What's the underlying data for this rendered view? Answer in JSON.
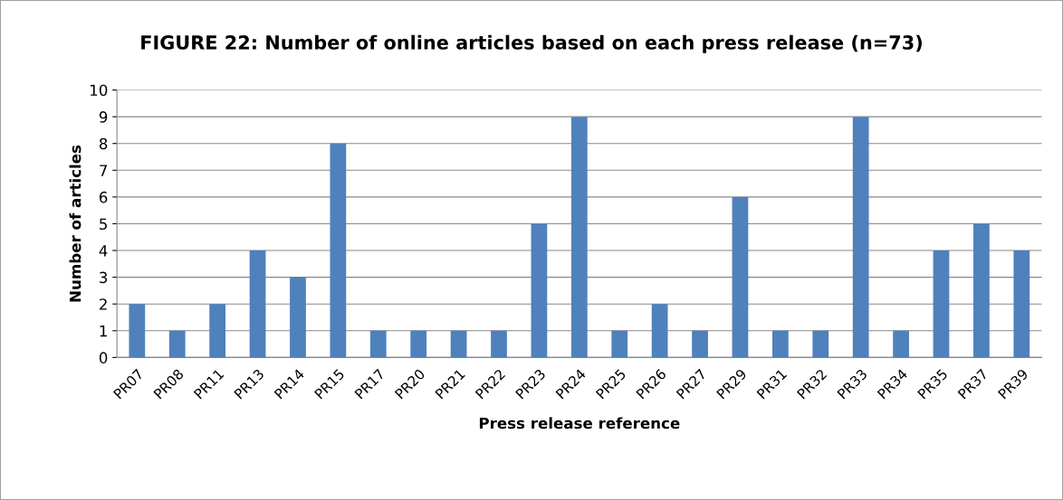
{
  "chart_data": {
    "type": "bar",
    "title": "FIGURE 22: Number of online articles based on each press release (n=73)",
    "xlabel": "Press release reference",
    "ylabel": "Number of articles",
    "categories": [
      "PR07",
      "PR08",
      "PR11",
      "PR13",
      "PR14",
      "PR15",
      "PR17",
      "PR20",
      "PR21",
      "PR22",
      "PR23",
      "PR24",
      "PR25",
      "PR26",
      "PR27",
      "PR29",
      "PR31",
      "PR32",
      "PR33",
      "PR34",
      "PR35",
      "PR37",
      "PR39"
    ],
    "values": [
      2,
      1,
      2,
      4,
      3,
      8,
      1,
      1,
      1,
      1,
      5,
      9,
      1,
      2,
      1,
      6,
      1,
      1,
      9,
      1,
      4,
      5,
      4
    ],
    "color": "#4f81bd",
    "ylim": [
      0,
      10
    ],
    "yticks": [
      0,
      1,
      2,
      3,
      4,
      5,
      6,
      7,
      8,
      9,
      10
    ],
    "grid": "y",
    "legend": false
  }
}
